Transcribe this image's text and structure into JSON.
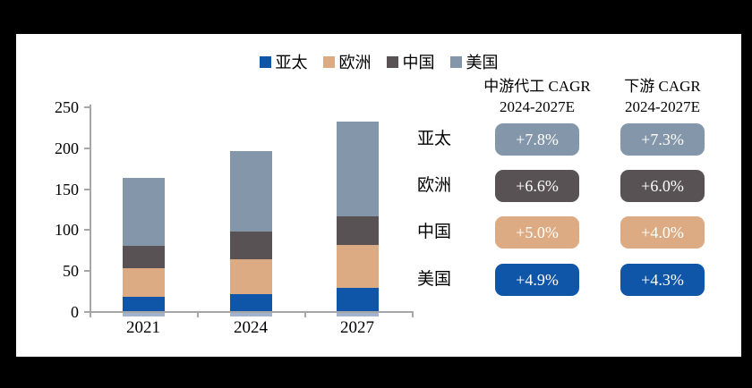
{
  "frame": {
    "background": "#000000",
    "panel_background": "#ffffff"
  },
  "legend": {
    "items": [
      {
        "label": "亚太",
        "color": "#0F56A8"
      },
      {
        "label": "欧洲",
        "color": "#DCAB84"
      },
      {
        "label": "中国",
        "color": "#585254"
      },
      {
        "label": "美国",
        "color": "#8496AA"
      }
    ]
  },
  "chart_data": {
    "type": "bar",
    "stacked": true,
    "title": "",
    "categories": [
      "2021",
      "2024",
      "2027"
    ],
    "series": [
      {
        "name": "亚太",
        "color": "#0F56A8",
        "values": [
          18,
          21,
          28
        ]
      },
      {
        "name": "欧洲",
        "color": "#DCAB84",
        "values": [
          34,
          42,
          53
        ]
      },
      {
        "name": "中国",
        "color": "#585254",
        "values": [
          28,
          34,
          35
        ]
      },
      {
        "name": "美国",
        "color": "#8496AA",
        "values": [
          83,
          98,
          115
        ]
      }
    ],
    "totals": [
      163,
      195,
      231
    ],
    "ylim": [
      0,
      250
    ],
    "yticks": [
      0,
      50,
      100,
      150,
      200,
      250
    ],
    "ytick_labels": [
      "0",
      "50",
      "100",
      "150",
      "200",
      "250"
    ],
    "grid": false,
    "legend_position": "top",
    "axis_color": "#A6A6A6",
    "baseline_strip_color": "#A3B3CE"
  },
  "cagr_table": {
    "columns": [
      {
        "title": "中游代工 CAGR",
        "subtitle": "2024-2027E"
      },
      {
        "title": "下游 CAGR",
        "subtitle": "2024-2027E"
      }
    ],
    "rows": [
      {
        "label": "亚太",
        "badge_color": "#8496AA",
        "values": [
          "+7.8%",
          "+7.3%"
        ]
      },
      {
        "label": "欧洲",
        "badge_color": "#585254",
        "values": [
          "+6.6%",
          "+6.0%"
        ]
      },
      {
        "label": "中国",
        "badge_color": "#DCAB84",
        "values": [
          "+5.0%",
          "+4.0%"
        ]
      },
      {
        "label": "美国",
        "badge_color": "#0F56A8",
        "values": [
          "+4.9%",
          "+4.3%"
        ]
      }
    ]
  }
}
